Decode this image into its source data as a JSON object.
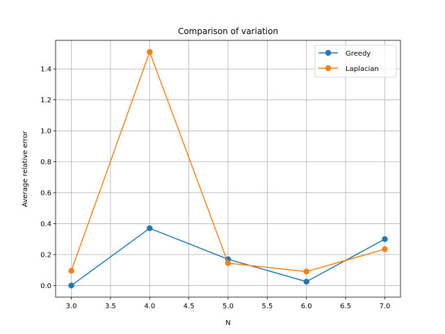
{
  "chart_data": {
    "type": "line",
    "title": "Comparison of variation",
    "xlabel": "N",
    "ylabel": "Average relative error",
    "xlim": [
      2.8,
      7.2
    ],
    "ylim": [
      -0.075,
      1.585
    ],
    "x_ticks": [
      3.0,
      3.5,
      4.0,
      4.5,
      5.0,
      5.5,
      6.0,
      6.5,
      7.0
    ],
    "x_tick_labels": [
      "3.0",
      "3.5",
      "4.0",
      "4.5",
      "5.0",
      "5.5",
      "6.0",
      "6.5",
      "7.0"
    ],
    "y_ticks": [
      0.0,
      0.2,
      0.4,
      0.6,
      0.8,
      1.0,
      1.2,
      1.4
    ],
    "y_tick_labels": [
      "0.0",
      "0.2",
      "0.4",
      "0.6",
      "0.8",
      "1.0",
      "1.2",
      "1.4"
    ],
    "grid": true,
    "legend_position": "top-right",
    "x": [
      3,
      4,
      5,
      6,
      7
    ],
    "series": [
      {
        "name": "Greedy",
        "color": "#1f77b4",
        "marker": "circle",
        "values": [
          0.0,
          0.37,
          0.17,
          0.025,
          0.3
        ]
      },
      {
        "name": "Laplacian",
        "color": "#ff7f0e",
        "marker": "circle",
        "values": [
          0.095,
          1.51,
          0.145,
          0.09,
          0.235
        ]
      }
    ]
  }
}
